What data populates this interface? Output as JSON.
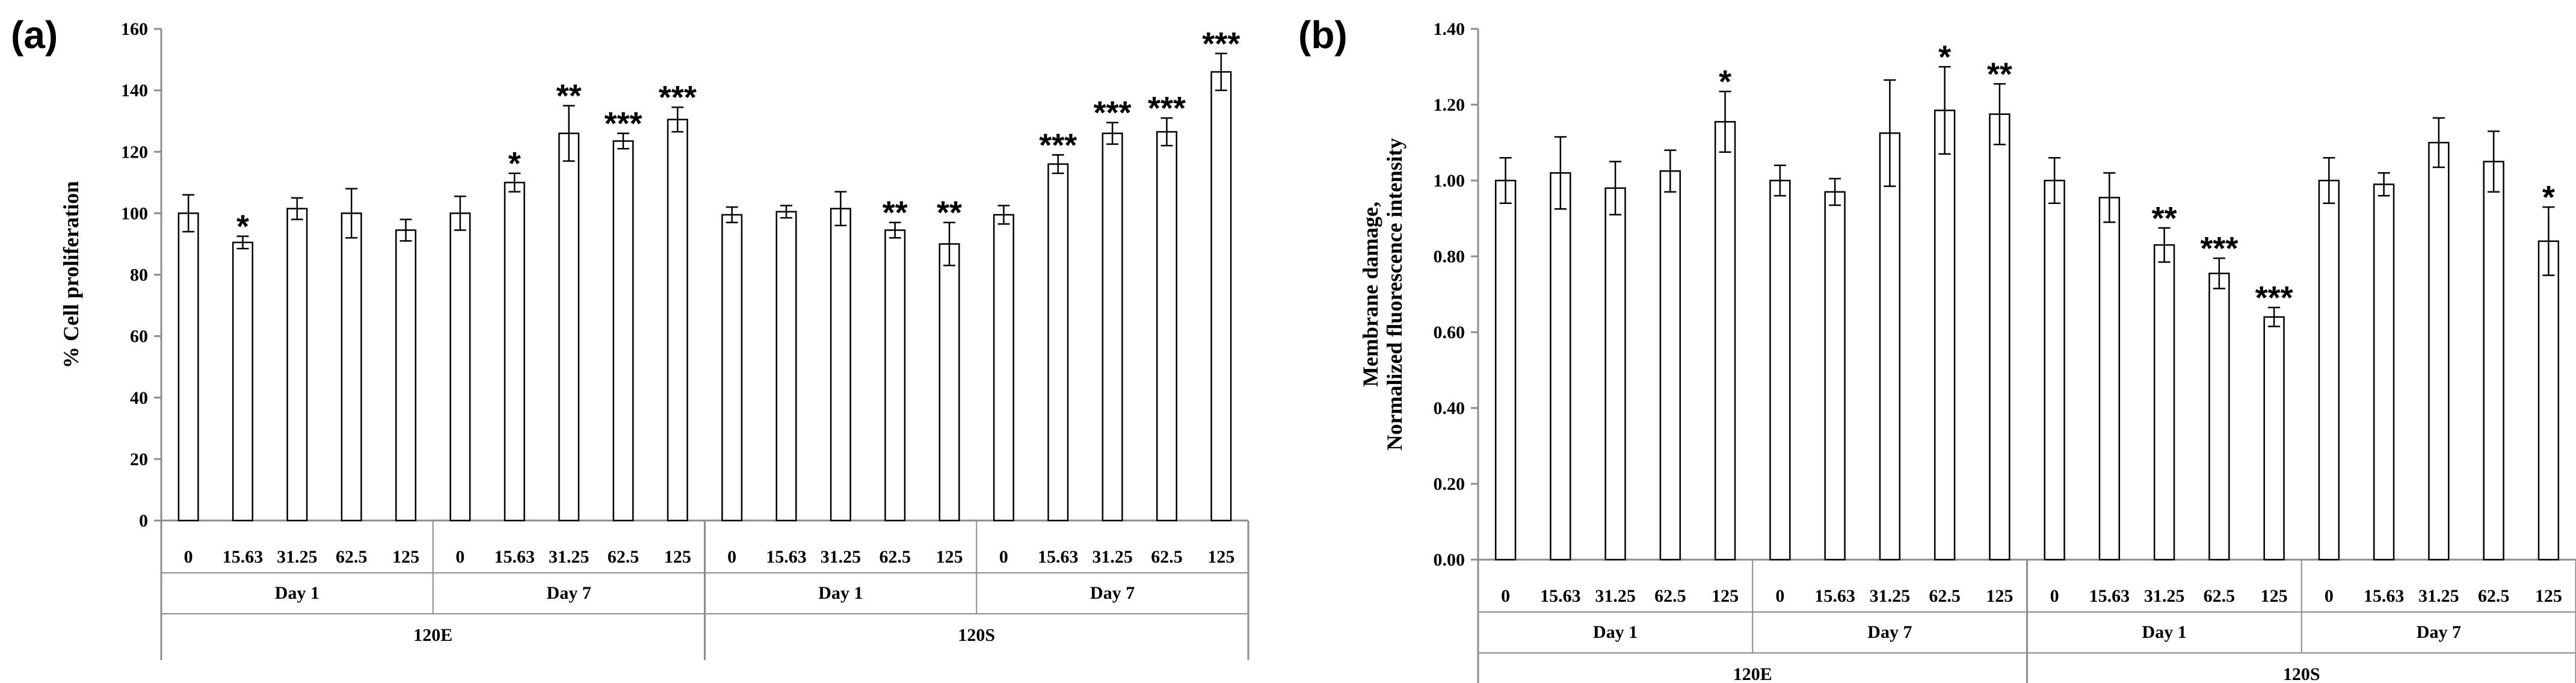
{
  "chart_data": [
    {
      "panel": "(a)",
      "type": "bar",
      "ylabel": "% Cell proliferation",
      "ylim": [
        0,
        160
      ],
      "yticks": [
        "0",
        "20",
        "40",
        "60",
        "80",
        "100",
        "120",
        "140",
        "160"
      ],
      "materials": [
        "120E",
        "120S"
      ],
      "days": [
        "Day 1",
        "Day 7"
      ],
      "concentrations": [
        "0",
        "15.63",
        "31.25",
        "62.5",
        "125"
      ],
      "values": [
        100,
        90.5,
        101.5,
        100,
        94.5,
        100,
        110,
        126,
        123.5,
        130.5,
        99.5,
        100.5,
        101.5,
        94.5,
        90,
        99.5,
        116,
        126,
        126.5,
        146
      ],
      "errors": [
        6,
        2,
        3.5,
        8,
        3.5,
        5.5,
        3,
        9,
        2.5,
        4,
        2.5,
        2,
        5.5,
        2.5,
        7,
        3,
        3,
        3.5,
        4.5,
        6
      ],
      "significance": [
        "",
        "*",
        "",
        "",
        "",
        "",
        "*",
        "**",
        "***",
        "***",
        "",
        "",
        "",
        "**",
        "**",
        "",
        "***",
        "***",
        "***",
        "***"
      ]
    },
    {
      "panel": "(b)",
      "type": "bar",
      "ylabel_line1": "Membrane damage,",
      "ylabel_line2": "Normalized fluorescence intensity",
      "ylim": [
        0,
        1.4
      ],
      "yticks": [
        "0.00",
        "0.20",
        "0.40",
        "0.60",
        "0.80",
        "1.00",
        "1.20",
        "1.40"
      ],
      "materials": [
        "120E",
        "120S"
      ],
      "days": [
        "Day 1",
        "Day 7"
      ],
      "concentrations": [
        "0",
        "15.63",
        "31.25",
        "62.5",
        "125"
      ],
      "values": [
        1.0,
        1.02,
        0.98,
        1.025,
        1.155,
        1.0,
        0.97,
        1.125,
        1.185,
        1.175,
        1.0,
        0.955,
        0.83,
        0.755,
        0.64,
        1.0,
        0.99,
        1.1,
        1.05,
        0.84
      ],
      "errors": [
        0.06,
        0.095,
        0.07,
        0.055,
        0.08,
        0.04,
        0.035,
        0.14,
        0.115,
        0.08,
        0.06,
        0.065,
        0.045,
        0.04,
        0.025,
        0.06,
        0.03,
        0.065,
        0.08,
        0.09
      ],
      "significance": [
        "",
        "",
        "",
        "",
        "*",
        "",
        "",
        "",
        "*",
        "**",
        "",
        "",
        "**",
        "***",
        "***",
        "",
        "",
        "",
        "",
        "*"
      ]
    }
  ]
}
